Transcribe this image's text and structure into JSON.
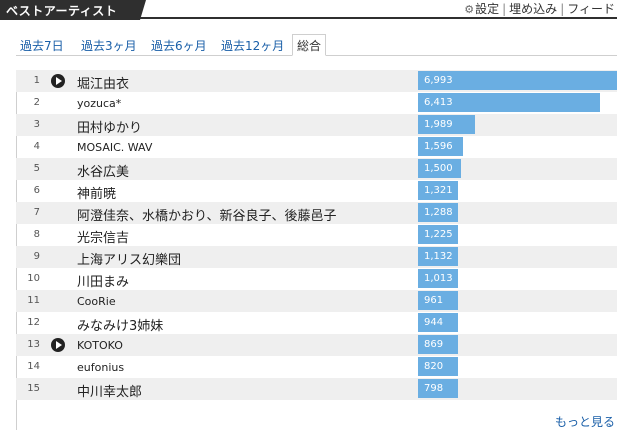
{
  "header": {
    "title": "ベストアーティスト",
    "links": {
      "settings": "設定",
      "embed": "埋め込み",
      "feed": "フィード",
      "separator": "|"
    }
  },
  "tabs": [
    {
      "label": "過去7日",
      "active": false
    },
    {
      "label": "過去3ヶ月",
      "active": false
    },
    {
      "label": "過去6ヶ月",
      "active": false
    },
    {
      "label": "過去12ヶ月",
      "active": false
    },
    {
      "label": "総合",
      "active": true
    }
  ],
  "chart_data": {
    "type": "bar",
    "max_value": 6993,
    "bar_color": "#6aaee2",
    "rows": [
      {
        "rank": "1",
        "name": "堀江由衣",
        "count": "6,993",
        "value": 6993,
        "play": true
      },
      {
        "rank": "2",
        "name": "yozuca*",
        "count": "6,413",
        "value": 6413,
        "play": false
      },
      {
        "rank": "3",
        "name": "田村ゆかり",
        "count": "1,989",
        "value": 1989,
        "play": false
      },
      {
        "rank": "4",
        "name": "MOSAIC. WAV",
        "count": "1,596",
        "value": 1596,
        "play": false
      },
      {
        "rank": "5",
        "name": "水谷広美",
        "count": "1,500",
        "value": 1500,
        "play": false
      },
      {
        "rank": "6",
        "name": "神前暁",
        "count": "1,321",
        "value": 1321,
        "play": false
      },
      {
        "rank": "7",
        "name": "阿澄佳奈、水橋かおり、新谷良子、後藤邑子",
        "count": "1,288",
        "value": 1288,
        "play": false
      },
      {
        "rank": "8",
        "name": "光宗信吉",
        "count": "1,225",
        "value": 1225,
        "play": false
      },
      {
        "rank": "9",
        "name": "上海アリス幻樂団",
        "count": "1,132",
        "value": 1132,
        "play": false
      },
      {
        "rank": "10",
        "name": "川田まみ",
        "count": "1,013",
        "value": 1013,
        "play": false
      },
      {
        "rank": "11",
        "name": "CooRie",
        "count": "961",
        "value": 961,
        "play": false
      },
      {
        "rank": "12",
        "name": "みなみけ3姉妹",
        "count": "944",
        "value": 944,
        "play": false
      },
      {
        "rank": "13",
        "name": "KOTOKO",
        "count": "869",
        "value": 869,
        "play": true
      },
      {
        "rank": "14",
        "name": "eufonius",
        "count": "820",
        "value": 820,
        "play": false
      },
      {
        "rank": "15",
        "name": "中川幸太郎",
        "count": "798",
        "value": 798,
        "play": false
      }
    ]
  },
  "footer": {
    "more": "もっと見る"
  }
}
